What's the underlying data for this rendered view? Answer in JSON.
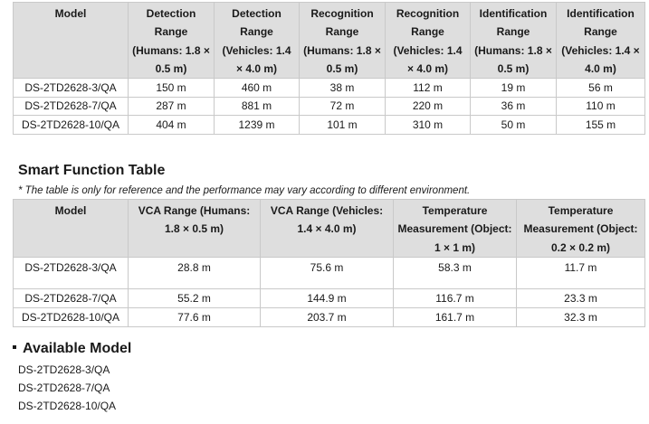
{
  "range_table": {
    "headers": [
      "Model",
      "Detection Range (Humans: 1.8 × 0.5 m)",
      "Detection Range (Vehicles: 1.4 × 4.0 m)",
      "Recognition Range (Humans: 1.8 × 0.5 m)",
      "Recognition Range (Vehicles: 1.4 × 4.0 m)",
      "Identification Range (Humans: 1.8 × 0.5 m)",
      "Identification Range (Vehicles: 1.4 × 4.0 m)"
    ],
    "rows": [
      [
        "DS-2TD2628-3/QA",
        "150 m",
        "460 m",
        "38 m",
        "112 m",
        "19 m",
        "56 m"
      ],
      [
        "DS-2TD2628-7/QA",
        "287 m",
        "881 m",
        "72 m",
        "220 m",
        "36 m",
        "110 m"
      ],
      [
        "DS-2TD2628-10/QA",
        "404 m",
        "1239 m",
        "101 m",
        "310 m",
        "50 m",
        "155 m"
      ]
    ]
  },
  "smart_section": {
    "title": "Smart Function Table",
    "note": "* The table is only for reference and the performance may vary according to different environment."
  },
  "smart_table": {
    "headers": [
      "Model",
      "VCA Range (Humans: 1.8 × 0.5 m)",
      "VCA Range (Vehicles: 1.4 × 4.0 m)",
      "Temperature Measurement (Object: 1 × 1 m)",
      "Temperature Measurement (Object: 0.2 × 0.2 m)"
    ],
    "rows": [
      [
        "DS-2TD2628-3/QA",
        "28.8 m",
        "75.6 m",
        "58.3 m",
        "11.7 m"
      ],
      [
        "DS-2TD2628-7/QA",
        "55.2 m",
        "144.9 m",
        "116.7 m",
        "23.3 m"
      ],
      [
        "DS-2TD2628-10/QA",
        "77.6 m",
        "203.7 m",
        "161.7 m",
        "32.3 m"
      ]
    ]
  },
  "available": {
    "title": "Available Model",
    "models": [
      "DS-2TD2628-3/QA",
      "DS-2TD2628-7/QA",
      "DS-2TD2628-10/QA"
    ]
  }
}
